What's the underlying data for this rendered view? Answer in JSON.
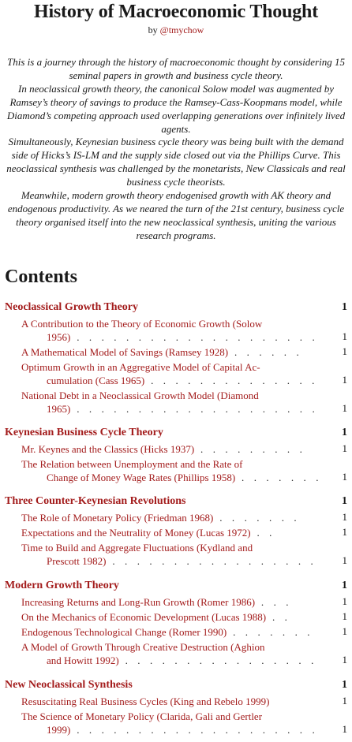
{
  "title": "History of Macroeconomic Thought",
  "byline": {
    "prefix": "by ",
    "handle": "@tmychow"
  },
  "abstract": [
    "This is a journey through the history of macroeconomic thought by considering 15 seminal papers in growth and business cycle theory.",
    "In neoclassical growth theory, the canonical Solow model was augmented by Ramsey’s theory of savings to produce the Ramsey-Cass-Koopmans model, while Diamond’s competing approach used overlapping generations over infinitely lived agents.",
    "Simultaneously, Keynesian business cycle theory was being built with the demand side of Hicks’s IS-LM and the supply side closed out via the Phillips Curve. This neoclassical synthesis was challenged by the monetarists, New Classicals and real business cycle theorists.",
    "Meanwhile, modern growth theory endogenised growth with AK theory and endogenous productivity. As we neared the turn of the 21st century, business cycle theory organised itself into the new neoclassical synthesis, uniting the various research programs."
  ],
  "contents_heading": "Contents",
  "toc": {
    "sections": [
      {
        "title": "Neoclassical Growth Theory",
        "page": "1",
        "entries": [
          {
            "line1": "A Contribution to the Theory of Economic Growth (Solow",
            "line2": "1956)",
            "page": "1"
          },
          {
            "line1": "A Mathematical Model of Savings (Ramsey 1928)",
            "page": "1"
          },
          {
            "line1": "Optimum Growth in an Aggregative Model of Capital Ac-",
            "line2": "cumulation (Cass 1965)",
            "page": "1"
          },
          {
            "line1": "National Debt in a Neoclassical Growth Model (Diamond",
            "line2": "1965)",
            "page": "1"
          }
        ]
      },
      {
        "title": "Keynesian Business Cycle Theory",
        "page": "1",
        "entries": [
          {
            "line1": "Mr. Keynes and the Classics (Hicks 1937)",
            "page": "1"
          },
          {
            "line1": "The Relation between Unemployment and the Rate of",
            "line2": "Change of Money Wage Rates (Phillips 1958)",
            "page": "1"
          }
        ]
      },
      {
        "title": "Three Counter-Keynesian Revolutions",
        "page": "1",
        "entries": [
          {
            "line1": "The Role of Monetary Policy (Friedman 1968)",
            "page": "1"
          },
          {
            "line1": "Expectations and the Neutrality of Money (Lucas 1972)",
            "page": "1"
          },
          {
            "line1": "Time to Build and Aggregate Fluctuations (Kydland and",
            "line2": "Prescott 1982)",
            "page": "1"
          }
        ]
      },
      {
        "title": "Modern Growth Theory",
        "page": "1",
        "entries": [
          {
            "line1": "Increasing Returns and Long-Run Growth (Romer 1986)",
            "page": "1"
          },
          {
            "line1": "On the Mechanics of Economic Development (Lucas 1988)",
            "page": "1"
          },
          {
            "line1": "Endogenous Technological Change (Romer 1990)",
            "page": "1"
          },
          {
            "line1": "A Model of Growth Through Creative Destruction (Aghion",
            "line2": "and Howitt 1992)",
            "page": "1"
          }
        ]
      },
      {
        "title": "New Neoclassical Synthesis",
        "page": "1",
        "entries": [
          {
            "line1": "Resuscitating Real Business Cycles (King and Rebelo 1999)",
            "page": "1"
          },
          {
            "line1": "The Science of Monetary Policy (Clarida, Gali and Gertler",
            "line2": "1999)",
            "page": "1"
          }
        ]
      }
    ]
  }
}
